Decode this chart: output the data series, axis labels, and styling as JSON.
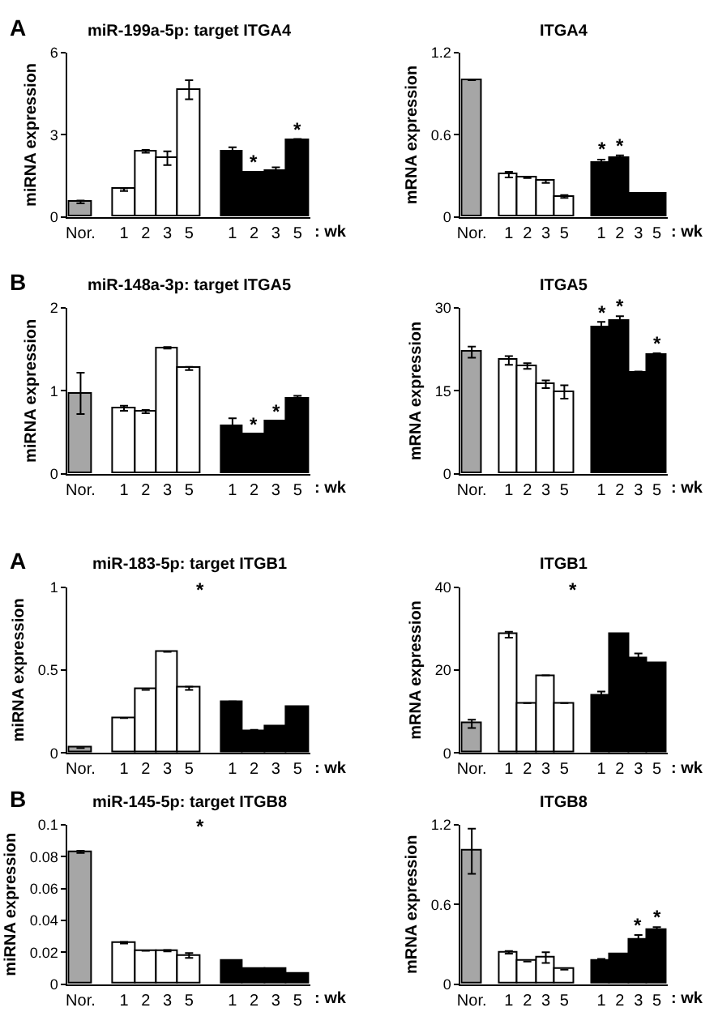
{
  "chart_data": [
    {
      "type": "bar",
      "title": "miR-199a-5p: target ITGA4",
      "ylabel": "miRNA expression",
      "xlabel": ": wk",
      "annotations": [
        "A"
      ],
      "categories": [
        "Nor.",
        null,
        "1",
        "2",
        "3",
        "5",
        null,
        "1",
        "2",
        "3",
        "5"
      ],
      "values": [
        0.55,
        null,
        1.0,
        2.4,
        2.15,
        4.65,
        null,
        2.4,
        1.6,
        1.7,
        2.8
      ],
      "errors": [
        0.05,
        null,
        0.05,
        0.05,
        0.25,
        0.35,
        null,
        0.15,
        0.05,
        0.12,
        0.05
      ],
      "value_labels": [
        null,
        null,
        null,
        null,
        null,
        null,
        null,
        null,
        "*",
        null,
        "*"
      ],
      "colors": [
        "#a6a6a6",
        null,
        "#ffffff",
        "#ffffff",
        "#ffffff",
        "#ffffff",
        null,
        "#000000",
        "#000000",
        "#000000",
        "#000000"
      ],
      "ylim": [
        0,
        6
      ],
      "yticks": [
        0,
        3,
        6
      ]
    },
    {
      "type": "bar",
      "title": "ITGA4",
      "ylabel": "mRNA expression",
      "xlabel": ": wk",
      "categories": [
        "Nor.",
        null,
        "1",
        "2",
        "3",
        "5",
        null,
        "1",
        "2",
        "3",
        "5"
      ],
      "values": [
        1.0,
        null,
        0.31,
        0.29,
        0.26,
        0.15,
        null,
        0.4,
        0.43,
        0.17,
        0.17
      ],
      "errors": [
        null,
        null,
        0.02,
        0.005,
        0.01,
        0.01,
        null,
        0.02,
        0.02,
        null,
        null
      ],
      "value_labels": [
        null,
        null,
        null,
        null,
        null,
        null,
        null,
        "*",
        "*",
        null,
        null
      ],
      "colors": [
        "#a6a6a6",
        null,
        "#ffffff",
        "#ffffff",
        "#ffffff",
        "#ffffff",
        null,
        "#000000",
        "#000000",
        "#000000",
        "#000000"
      ],
      "ylim": [
        0,
        1.2
      ],
      "yticks": [
        0,
        0.6,
        1.2
      ]
    },
    {
      "type": "bar",
      "title": "miR-148a-3p: target ITGA5",
      "ylabel": "miRNA expression",
      "xlabel": ": wk",
      "annotations": [
        "B"
      ],
      "categories": [
        "Nor.",
        null,
        "1",
        "2",
        "3",
        "5",
        null,
        "1",
        "2",
        "3",
        "5"
      ],
      "values": [
        0.97,
        null,
        0.79,
        0.75,
        1.52,
        1.27,
        null,
        0.57,
        0.47,
        0.63,
        0.9
      ],
      "errors": [
        0.25,
        null,
        0.03,
        0.02,
        0.01,
        0.02,
        null,
        0.1,
        0.01,
        0.01,
        0.04
      ],
      "value_labels": [
        null,
        null,
        null,
        null,
        null,
        null,
        null,
        null,
        "*",
        "*",
        null
      ],
      "colors": [
        "#a6a6a6",
        null,
        "#ffffff",
        "#ffffff",
        "#ffffff",
        "#ffffff",
        null,
        "#000000",
        "#000000",
        "#000000",
        "#000000"
      ],
      "ylim": [
        0,
        2
      ],
      "yticks": [
        0,
        1,
        2
      ]
    },
    {
      "type": "bar",
      "title": "ITGA5",
      "ylabel": "mRNA expression",
      "xlabel": ": wk",
      "categories": [
        "Nor.",
        null,
        "1",
        "2",
        "3",
        "5",
        null,
        "1",
        "2",
        "3",
        "5"
      ],
      "values": [
        22,
        null,
        20.5,
        19.5,
        16.2,
        14.8,
        null,
        26.5,
        27.6,
        18.2,
        21.6
      ],
      "errors": [
        1,
        null,
        0.8,
        0.5,
        0.7,
        1.2,
        null,
        1,
        0.9,
        0.3,
        0.2
      ],
      "value_labels": [
        null,
        null,
        null,
        null,
        null,
        null,
        null,
        "*",
        "*",
        null,
        "*"
      ],
      "colors": [
        "#a6a6a6",
        null,
        "#ffffff",
        "#ffffff",
        "#ffffff",
        "#ffffff",
        null,
        "#000000",
        "#000000",
        "#000000",
        "#000000"
      ],
      "ylim": [
        0,
        30
      ],
      "yticks": [
        0,
        15,
        30
      ]
    },
    {
      "type": "bar",
      "title": "miR-183-5p: target ITGB1",
      "ylabel": "miRNA expression",
      "xlabel": ": wk",
      "annotations": [
        "A",
        "*"
      ],
      "categories": [
        "Nor.",
        null,
        "1",
        "2",
        "3",
        "5",
        null,
        "1",
        "2",
        "3",
        "5"
      ],
      "values": [
        0.03,
        null,
        0.21,
        0.38,
        0.61,
        0.39,
        null,
        0.31,
        0.13,
        0.16,
        0.28
      ],
      "errors": [
        null,
        null,
        null,
        null,
        null,
        0.01,
        null,
        null,
        0.01,
        null,
        null
      ],
      "colors": [
        "#a6a6a6",
        null,
        "#ffffff",
        "#ffffff",
        "#ffffff",
        "#ffffff",
        null,
        "#000000",
        "#000000",
        "#000000",
        "#000000"
      ],
      "ylim": [
        0,
        1
      ],
      "yticks": [
        0,
        0.5,
        1
      ]
    },
    {
      "type": "bar",
      "title": "ITGB1",
      "ylabel": "mRNA expression",
      "xlabel": ": wk",
      "annotations": [
        "*"
      ],
      "categories": [
        "Nor.",
        null,
        "1",
        "2",
        "3",
        "5",
        null,
        "1",
        "2",
        "3",
        "5"
      ],
      "values": [
        7,
        null,
        28.5,
        12,
        18.7,
        12,
        null,
        14,
        28.5,
        23,
        21.5
      ],
      "errors": [
        1,
        null,
        0.7,
        null,
        null,
        null,
        null,
        0.8,
        0.3,
        1,
        null
      ],
      "colors": [
        "#a6a6a6",
        null,
        "#ffffff",
        "#ffffff",
        "#ffffff",
        "#ffffff",
        null,
        "#000000",
        "#000000",
        "#000000",
        "#000000"
      ],
      "ylim": [
        0,
        40
      ],
      "yticks": [
        0,
        20,
        40
      ]
    },
    {
      "type": "bar",
      "title": "miR-145-5p: target ITGB8",
      "ylabel": "miRNA expression",
      "xlabel": ": wk",
      "annotations": [
        "B",
        "*"
      ],
      "categories": [
        "Nor.",
        null,
        "1",
        "2",
        "3",
        "5",
        null,
        "1",
        "2",
        "3",
        "5"
      ],
      "values": [
        0.083,
        null,
        0.026,
        0.021,
        0.021,
        0.018,
        null,
        0.015,
        0.01,
        0.01,
        0.007
      ],
      "errors": [
        0.0007,
        null,
        0.0005,
        null,
        0.0005,
        0.0015,
        null,
        null,
        null,
        null,
        null
      ],
      "colors": [
        "#a6a6a6",
        null,
        "#ffffff",
        "#ffffff",
        "#ffffff",
        "#ffffff",
        null,
        "#000000",
        "#000000",
        "#000000",
        "#000000"
      ],
      "ylim": [
        0,
        0.1
      ],
      "yticks": [
        0,
        0.02,
        0.04,
        0.06,
        0.08,
        0.1
      ]
    },
    {
      "type": "bar",
      "title": "ITGB8",
      "ylabel": "mRNA expression",
      "xlabel": ": wk",
      "categories": [
        "Nor.",
        null,
        "1",
        "2",
        "3",
        "5",
        null,
        "1",
        "2",
        "3",
        "5"
      ],
      "values": [
        1.0,
        null,
        0.24,
        0.17,
        0.2,
        0.11,
        null,
        0.18,
        0.22,
        0.34,
        0.41
      ],
      "errors": [
        0.17,
        null,
        0.01,
        null,
        0.04,
        null,
        null,
        0.01,
        null,
        0.03,
        0.02
      ],
      "value_labels": [
        null,
        null,
        null,
        null,
        null,
        null,
        null,
        null,
        null,
        "*",
        "*"
      ],
      "colors": [
        "#a6a6a6",
        null,
        "#ffffff",
        "#ffffff",
        "#ffffff",
        "#ffffff",
        null,
        "#000000",
        "#000000",
        "#000000",
        "#000000"
      ],
      "ylim": [
        0,
        1.2
      ],
      "yticks": [
        0,
        0.6,
        1.2
      ]
    }
  ]
}
